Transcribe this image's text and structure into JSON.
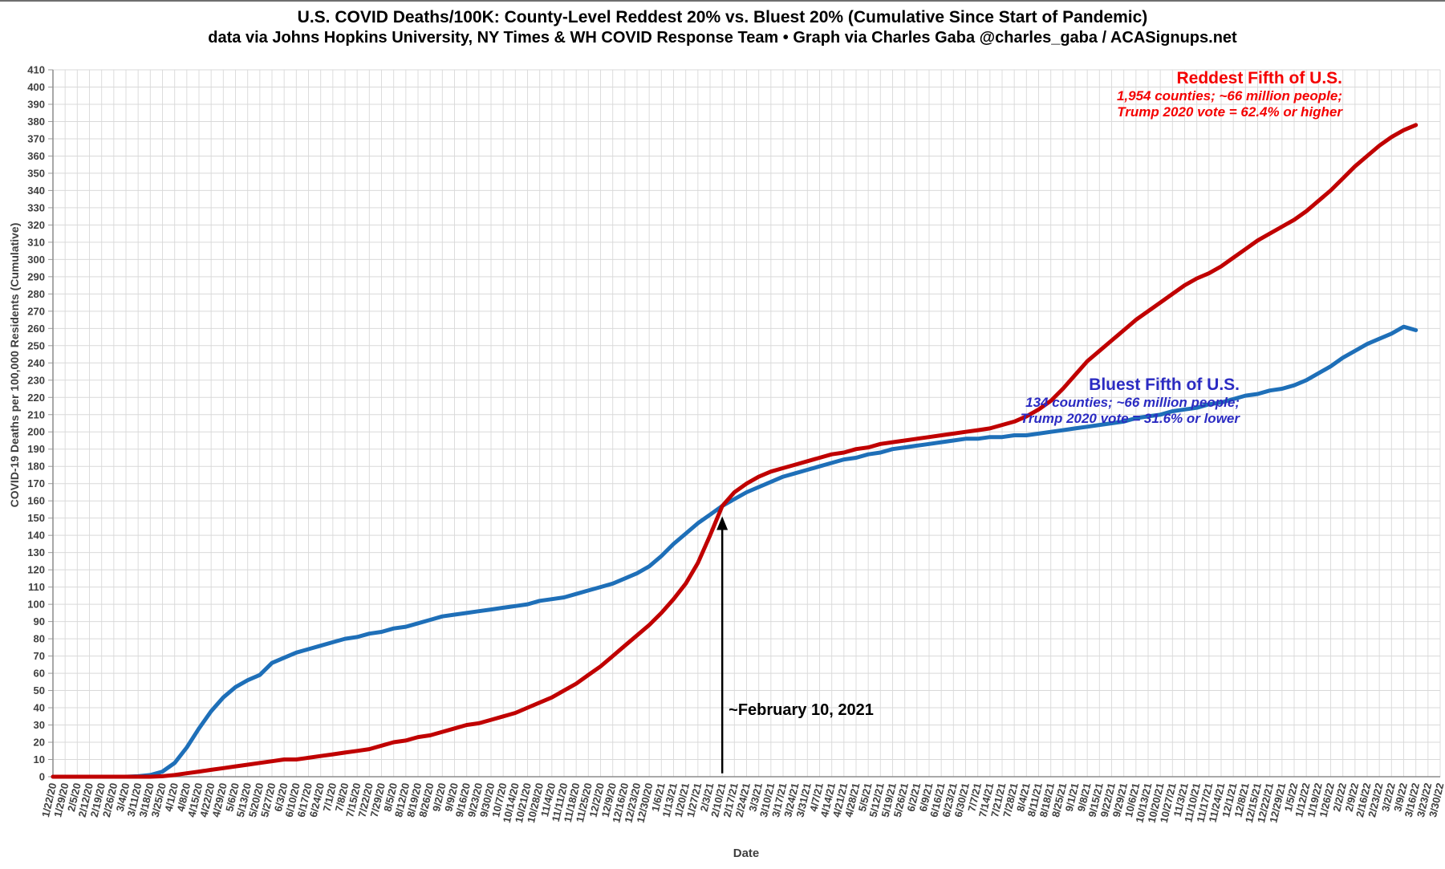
{
  "title": "U.S. COVID Deaths/100K: County-Level Reddest 20% vs. Bluest 20% (Cumulative Since Start of Pandemic)",
  "subtitle": "data via Johns Hopkins University, NY Times & WH COVID Response Team • Graph via Charles Gaba @charles_gaba / ACASignups.net",
  "legends": {
    "red": {
      "title": "Reddest Fifth of U.S.",
      "line1": "1,954 counties; ~66 million people;",
      "line2": "Trump 2020 vote = 62.4% or higher",
      "color": "#f40000"
    },
    "blue": {
      "title": "Bluest Fifth of U.S.",
      "line1": "134 counties; ~66 million people;",
      "line2": "Trump 2020 vote = 31.6% or lower",
      "color": "#2b2bc2"
    }
  },
  "chart_data": {
    "type": "line",
    "grid": true,
    "x_axis": {
      "label": "Date",
      "categories": [
        "1/22/20",
        "1/29/20",
        "2/5/20",
        "2/12/20",
        "2/19/20",
        "2/26/20",
        "3/4/20",
        "3/11/20",
        "3/18/20",
        "3/25/20",
        "4/1/20",
        "4/8/20",
        "4/15/20",
        "4/22/20",
        "4/29/20",
        "5/6/20",
        "5/13/20",
        "5/20/20",
        "5/27/20",
        "6/3/20",
        "6/10/20",
        "6/17/20",
        "6/24/20",
        "7/1/20",
        "7/8/20",
        "7/15/20",
        "7/22/20",
        "7/29/20",
        "8/5/20",
        "8/12/20",
        "8/19/20",
        "8/26/20",
        "9/2/20",
        "9/9/20",
        "9/16/20",
        "9/23/20",
        "9/30/20",
        "10/7/20",
        "10/14/20",
        "10/21/20",
        "10/28/20",
        "11/4/20",
        "11/11/20",
        "11/18/20",
        "11/25/20",
        "12/2/20",
        "12/9/20",
        "12/16/20",
        "12/23/20",
        "12/30/20",
        "1/6/21",
        "1/13/21",
        "1/20/21",
        "1/27/21",
        "2/3/21",
        "2/10/21",
        "2/17/21",
        "2/24/21",
        "3/3/21",
        "3/10/21",
        "3/17/21",
        "3/24/21",
        "3/31/21",
        "4/7/21",
        "4/14/21",
        "4/21/21",
        "4/28/21",
        "5/5/21",
        "5/12/21",
        "5/19/21",
        "5/26/21",
        "6/2/21",
        "6/9/21",
        "6/16/21",
        "6/23/21",
        "6/30/21",
        "7/7/21",
        "7/14/21",
        "7/21/21",
        "7/28/21",
        "8/4/21",
        "8/11/21",
        "8/18/21",
        "8/25/21",
        "9/1/21",
        "9/8/21",
        "9/15/21",
        "9/22/21",
        "9/29/21",
        "10/6/21",
        "10/13/21",
        "10/20/21",
        "10/27/21",
        "11/3/21",
        "11/10/21",
        "11/17/21",
        "11/24/21",
        "12/1/21",
        "12/8/21",
        "12/15/21",
        "12/22/21",
        "12/29/21",
        "1/5/22",
        "1/12/22",
        "1/19/22",
        "1/26/22",
        "2/2/22",
        "2/9/22",
        "2/16/22",
        "2/23/22",
        "3/2/22",
        "3/9/22",
        "3/16/22",
        "3/23/22",
        "3/30/22"
      ]
    },
    "y_axis": {
      "label": "COVID-19 Deaths per 100,000 Residents (Cumulative)",
      "min": 0,
      "max": 410,
      "tick_step": 10
    },
    "series": [
      {
        "name": "Reddest Fifth of U.S.",
        "color": "#c00000",
        "values": [
          0,
          0,
          0,
          0,
          0,
          0,
          0,
          0,
          0,
          0.3,
          1,
          2,
          3,
          4,
          5,
          6,
          7,
          8,
          9,
          10,
          10,
          11,
          12,
          13,
          14,
          15,
          16,
          18,
          20,
          21,
          23,
          24,
          26,
          28,
          30,
          31,
          33,
          35,
          37,
          40,
          43,
          46,
          50,
          54,
          59,
          64,
          70,
          76,
          82,
          88,
          95,
          103,
          112,
          124,
          140,
          157,
          165,
          170,
          174,
          177,
          179,
          181,
          183,
          185,
          187,
          188,
          190,
          191,
          193,
          194,
          195,
          196,
          197,
          198,
          199,
          200,
          201,
          202,
          204,
          206,
          209,
          213,
          218,
          225,
          233,
          241,
          247,
          253,
          259,
          265,
          270,
          275,
          280,
          285,
          289,
          292,
          296,
          301,
          306,
          311,
          315,
          319,
          323,
          328,
          334,
          340,
          347,
          354,
          360,
          366,
          371,
          375,
          378
        ]
      },
      {
        "name": "Bluest Fifth of U.S.",
        "color": "#1e6fb8",
        "values": [
          0,
          0,
          0,
          0,
          0,
          0,
          0,
          0.3,
          1,
          3,
          8,
          17,
          28,
          38,
          46,
          52,
          56,
          59,
          66,
          69,
          72,
          74,
          76,
          78,
          80,
          81,
          83,
          84,
          86,
          87,
          89,
          91,
          93,
          94,
          95,
          96,
          97,
          98,
          99,
          100,
          102,
          103,
          104,
          106,
          108,
          110,
          112,
          115,
          118,
          122,
          128,
          135,
          141,
          147,
          152,
          157,
          161,
          165,
          168,
          171,
          174,
          176,
          178,
          180,
          182,
          184,
          185,
          187,
          188,
          190,
          191,
          192,
          193,
          194,
          195,
          196,
          196,
          197,
          197,
          198,
          198,
          199,
          200,
          201,
          202,
          203,
          204,
          205,
          206,
          208,
          209,
          210,
          212,
          213,
          214,
          216,
          217,
          219,
          221,
          222,
          224,
          225,
          227,
          230,
          234,
          238,
          243,
          247,
          251,
          254,
          257,
          261,
          259
        ]
      }
    ],
    "annotation": {
      "label": "~February 10, 2021",
      "category": "2/10/21",
      "tip_value": 151,
      "base_value": 2
    }
  }
}
